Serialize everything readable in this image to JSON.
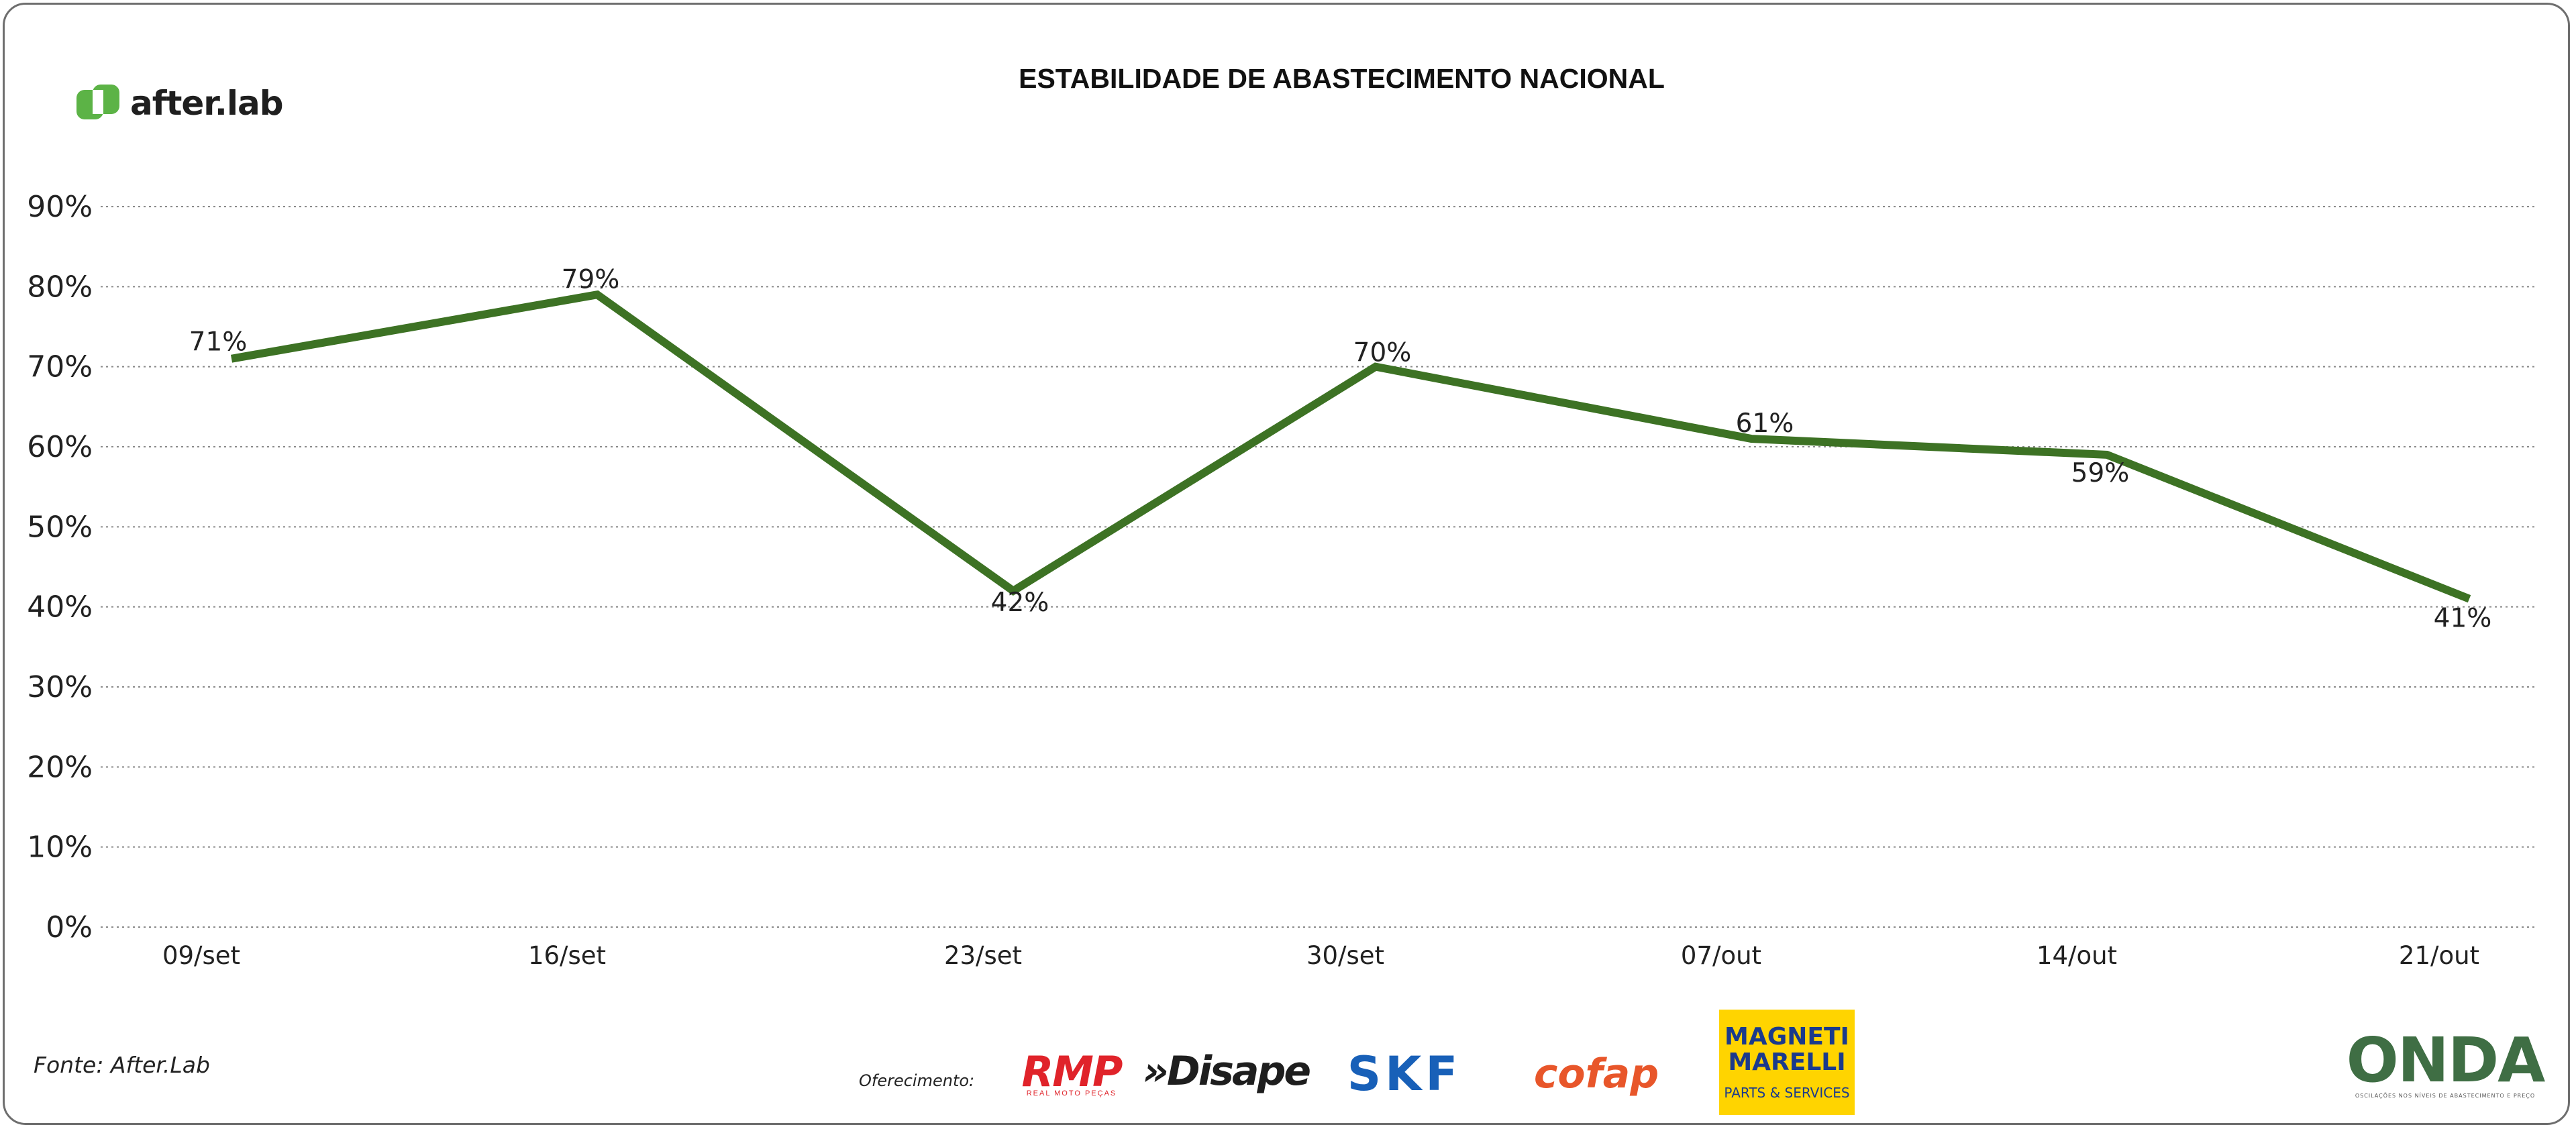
{
  "brand": {
    "name": "after.lab",
    "color": "#5cb346"
  },
  "chart_data": {
    "type": "line",
    "title": "ESTABILIDADE DE ABASTECIMENTO NACIONAL",
    "xlabel": "",
    "ylabel": "",
    "categories": [
      "09/set",
      "16/set",
      "23/set",
      "30/set",
      "07/out",
      "14/out",
      "21/out"
    ],
    "series": [
      {
        "values": [
          71,
          79,
          42,
          70,
          61,
          59,
          41
        ],
        "labels": [
          "71%",
          "79%",
          "42%",
          "70%",
          "61%",
          "59%",
          "41%"
        ],
        "color": "#3d7224"
      }
    ],
    "ylim": [
      0,
      90
    ],
    "yticks": [
      "0%",
      "10%",
      "20%",
      "30%",
      "40%",
      "50%",
      "60%",
      "70%",
      "80%",
      "90%"
    ],
    "grid": "horizontal-dotted",
    "legend": "none"
  },
  "footer": {
    "source": "Fonte: After.Lab",
    "sponsor_label": "Oferecimento:",
    "sponsors": {
      "rmp": "RMP",
      "rmp_sub": "REAL MOTO PEÇAS",
      "disape": "»Disape",
      "skf": "SKF",
      "cofap": "cofap",
      "magneti_1": "MAGNETI",
      "magneti_2": "MARELLI",
      "magneti_sub": "PARTS & SERVICES",
      "onda": "ONDA",
      "onda_sub": "OSCILAÇÕES NOS NÍVEIS DE ABASTECIMENTO E PREÇO"
    }
  }
}
